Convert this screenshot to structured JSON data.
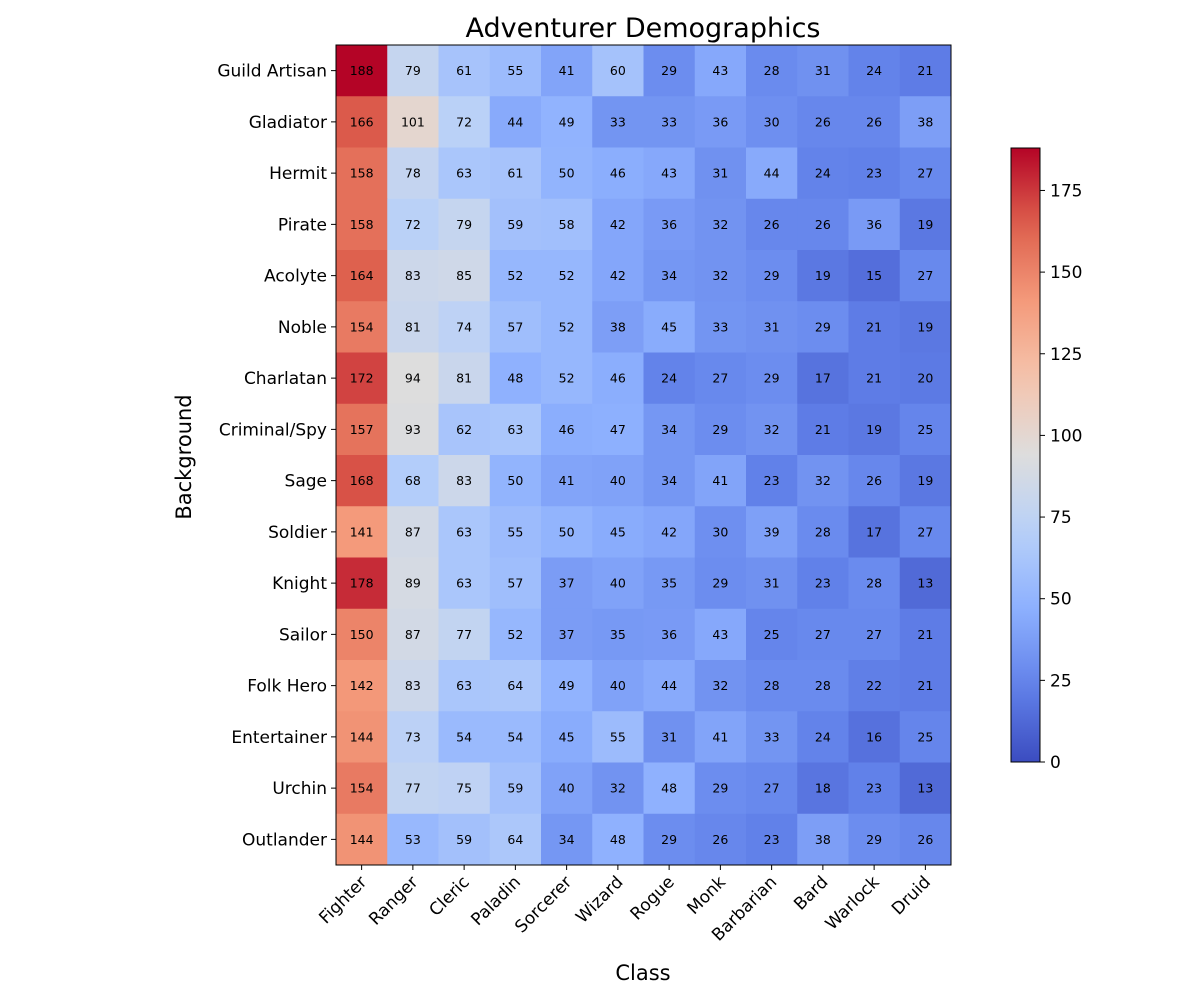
{
  "chart_data": {
    "type": "heatmap",
    "title": "Adventurer Demographics",
    "xlabel": "Class",
    "ylabel": "Background",
    "x_categories": [
      "Fighter",
      "Ranger",
      "Cleric",
      "Paladin",
      "Sorcerer",
      "Wizard",
      "Rogue",
      "Monk",
      "Barbarian",
      "Bard",
      "Warlock",
      "Druid"
    ],
    "y_categories": [
      "Guild Artisan",
      "Gladiator",
      "Hermit",
      "Pirate",
      "Acolyte",
      "Noble",
      "Charlatan",
      "Criminal/Spy",
      "Sage",
      "Soldier",
      "Knight",
      "Sailor",
      "Folk Hero",
      "Entertainer",
      "Urchin",
      "Outlander"
    ],
    "values": [
      [
        188,
        79,
        61,
        55,
        41,
        60,
        29,
        43,
        28,
        31,
        24,
        21
      ],
      [
        166,
        101,
        72,
        44,
        49,
        33,
        33,
        36,
        30,
        26,
        26,
        38
      ],
      [
        158,
        78,
        63,
        61,
        50,
        46,
        43,
        31,
        44,
        24,
        23,
        27
      ],
      [
        158,
        72,
        79,
        59,
        58,
        42,
        36,
        32,
        26,
        26,
        36,
        19
      ],
      [
        164,
        83,
        85,
        52,
        52,
        42,
        34,
        32,
        29,
        19,
        15,
        27
      ],
      [
        154,
        81,
        74,
        57,
        52,
        38,
        45,
        33,
        31,
        29,
        21,
        19
      ],
      [
        172,
        94,
        81,
        48,
        52,
        46,
        24,
        27,
        29,
        17,
        21,
        20
      ],
      [
        157,
        93,
        62,
        63,
        46,
        47,
        34,
        29,
        32,
        21,
        19,
        25
      ],
      [
        168,
        68,
        83,
        50,
        41,
        40,
        34,
        41,
        23,
        32,
        26,
        19
      ],
      [
        141,
        87,
        63,
        55,
        50,
        45,
        42,
        30,
        39,
        28,
        17,
        27
      ],
      [
        178,
        89,
        63,
        57,
        37,
        40,
        35,
        29,
        31,
        23,
        28,
        13
      ],
      [
        150,
        87,
        77,
        52,
        37,
        35,
        36,
        43,
        25,
        27,
        27,
        21
      ],
      [
        142,
        83,
        63,
        64,
        49,
        40,
        44,
        32,
        28,
        28,
        22,
        21
      ],
      [
        144,
        73,
        54,
        54,
        45,
        55,
        31,
        41,
        33,
        24,
        16,
        25
      ],
      [
        154,
        77,
        75,
        59,
        40,
        32,
        48,
        29,
        27,
        18,
        23,
        13
      ],
      [
        144,
        53,
        59,
        64,
        34,
        48,
        29,
        26,
        23,
        38,
        29,
        26
      ]
    ],
    "colormap": "coolwarm",
    "vmin": 0,
    "vmax": 188,
    "colorbar_ticks": [
      0,
      25,
      50,
      75,
      100,
      125,
      150,
      175
    ],
    "grid": false,
    "colorbar_position": "right"
  }
}
